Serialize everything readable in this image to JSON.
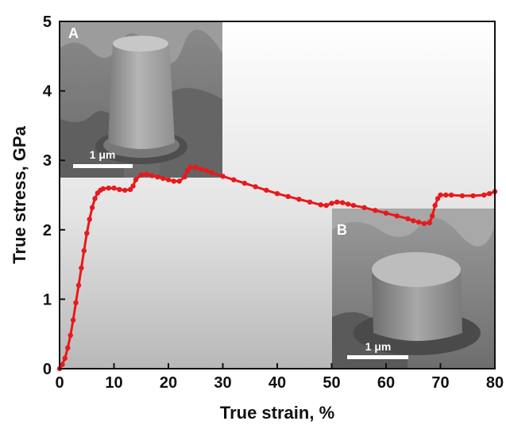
{
  "chart_data": {
    "type": "line",
    "xlabel": "True strain, %",
    "ylabel": "True stress, GPa",
    "xlim": [
      0,
      80
    ],
    "ylim": [
      0,
      5
    ],
    "xticks": [
      "0",
      "10",
      "20",
      "30",
      "40",
      "50",
      "60",
      "70",
      "80"
    ],
    "yticks": [
      "0",
      "1",
      "2",
      "3",
      "4",
      "5"
    ],
    "grid": false,
    "series_color": "#e8191c",
    "series": [
      {
        "x": [
          0,
          0.5,
          1,
          1.5,
          2,
          2.5,
          3,
          3.5,
          4,
          4.5,
          5,
          5.5,
          6,
          6.5,
          7,
          7.5,
          8,
          9,
          10,
          11,
          12,
          13,
          13.5,
          14,
          15,
          16,
          17,
          18,
          19,
          20,
          21,
          22,
          23,
          23.5,
          24,
          25,
          26,
          27,
          28,
          30,
          32,
          34,
          36,
          38,
          40,
          42,
          44,
          46,
          48,
          49,
          50,
          51,
          52,
          53,
          54,
          56,
          58,
          60,
          62,
          64,
          65,
          66,
          67,
          68,
          68.5,
          69,
          69.5,
          70,
          71,
          72,
          74,
          76,
          78,
          79,
          80
        ],
        "y": [
          0,
          0.06,
          0.15,
          0.3,
          0.48,
          0.7,
          0.95,
          1.2,
          1.45,
          1.7,
          1.95,
          2.15,
          2.32,
          2.45,
          2.53,
          2.57,
          2.59,
          2.6,
          2.6,
          2.58,
          2.57,
          2.58,
          2.63,
          2.72,
          2.79,
          2.8,
          2.78,
          2.76,
          2.74,
          2.72,
          2.7,
          2.7,
          2.76,
          2.85,
          2.9,
          2.9,
          2.87,
          2.85,
          2.82,
          2.77,
          2.72,
          2.67,
          2.62,
          2.57,
          2.52,
          2.48,
          2.44,
          2.4,
          2.36,
          2.35,
          2.38,
          2.4,
          2.39,
          2.37,
          2.35,
          2.32,
          2.28,
          2.24,
          2.2,
          2.16,
          2.13,
          2.11,
          2.09,
          2.1,
          2.2,
          2.35,
          2.45,
          2.5,
          2.5,
          2.5,
          2.49,
          2.49,
          2.5,
          2.52,
          2.55
        ]
      }
    ],
    "insets": [
      {
        "label": "A",
        "scale_bar": "1 μm",
        "position": "top-left"
      },
      {
        "label": "B",
        "scale_bar": "1 μm",
        "position": "bottom-right"
      }
    ]
  }
}
